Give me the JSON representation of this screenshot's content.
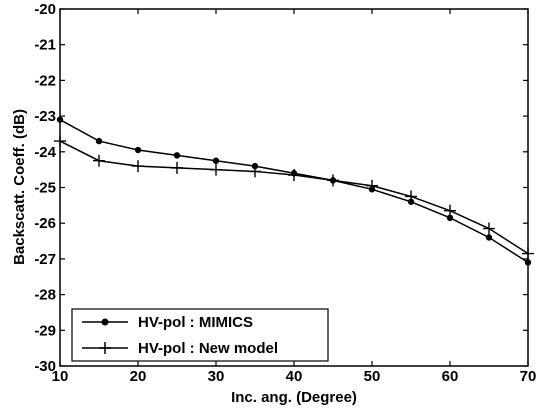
{
  "chart_data": {
    "type": "line",
    "xlabel": "Inc. ang. (Degree)",
    "ylabel": "Backscatt. Coeff. (dB)",
    "xlim": [
      10,
      70
    ],
    "ylim": [
      -30,
      -20
    ],
    "xticks": [
      10,
      20,
      30,
      40,
      50,
      60,
      70
    ],
    "yticks": [
      -30,
      -29,
      -28,
      -27,
      -26,
      -25,
      -24,
      -23,
      -22,
      -21,
      -20
    ],
    "grid": false,
    "legend_position": "bottom-left",
    "x": [
      10,
      15,
      20,
      25,
      30,
      35,
      40,
      45,
      50,
      55,
      60,
      65,
      70
    ],
    "series": [
      {
        "name": "HV-pol : MIMICS",
        "marker": "circle",
        "values": [
          -23.1,
          -23.7,
          -23.95,
          -24.1,
          -24.25,
          -24.4,
          -24.6,
          -24.8,
          -25.05,
          -25.4,
          -25.85,
          -26.4,
          -27.1
        ]
      },
      {
        "name": "HV-pol : New model",
        "marker": "plus",
        "values": [
          -23.7,
          -24.25,
          -24.4,
          -24.45,
          -24.5,
          -24.55,
          -24.65,
          -24.8,
          -24.95,
          -25.25,
          -25.65,
          -26.15,
          -26.85
        ]
      }
    ]
  }
}
